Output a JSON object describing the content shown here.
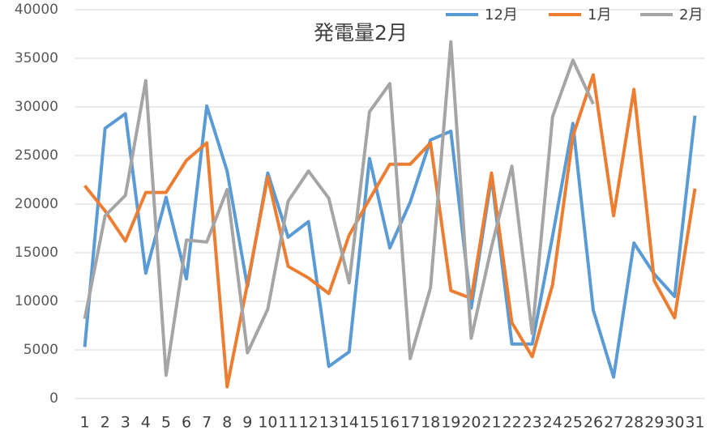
{
  "chart_data": {
    "type": "line",
    "title": "発電量2月",
    "categories": [
      1,
      2,
      3,
      4,
      5,
      6,
      7,
      8,
      9,
      10,
      11,
      12,
      13,
      14,
      15,
      16,
      17,
      18,
      19,
      20,
      21,
      22,
      23,
      24,
      25,
      26,
      27,
      28,
      29,
      30,
      31
    ],
    "series": [
      {
        "name": "12月",
        "color": "#5b9bd5",
        "values": [
          5300,
          27800,
          29300,
          12900,
          20700,
          12300,
          30100,
          23400,
          11500,
          23200,
          16600,
          18200,
          3300,
          4800,
          24700,
          15500,
          20200,
          26600,
          27500,
          9300,
          22800,
          5600,
          5600,
          16700,
          28300,
          9100,
          2200,
          16000,
          12800,
          10500,
          29100
        ]
      },
      {
        "name": "1月",
        "color": "#ed7d31",
        "values": [
          21900,
          19300,
          16200,
          21200,
          21200,
          24500,
          26300,
          1200,
          11800,
          22800,
          13600,
          12400,
          10800,
          16800,
          20500,
          24100,
          24100,
          26300,
          11100,
          10300,
          23200,
          7800,
          4300,
          11700,
          27000,
          33300,
          18800,
          31800,
          12100,
          8300,
          21600
        ]
      },
      {
        "name": "2月",
        "color": "#a5a5a5",
        "values": [
          8200,
          18800,
          20900,
          32700,
          2400,
          16300,
          16100,
          21500,
          4700,
          9200,
          20300,
          23400,
          20600,
          11900,
          29500,
          32400,
          4100,
          11400,
          36700,
          6200,
          15600,
          23900,
          6700,
          29000,
          34800,
          30300,
          null,
          null,
          null,
          null,
          null
        ]
      }
    ],
    "ylim": [
      0,
      40000
    ],
    "yticks": [
      0,
      5000,
      10000,
      15000,
      20000,
      25000,
      30000,
      35000,
      40000
    ],
    "grid": true,
    "legend": "top-right"
  }
}
